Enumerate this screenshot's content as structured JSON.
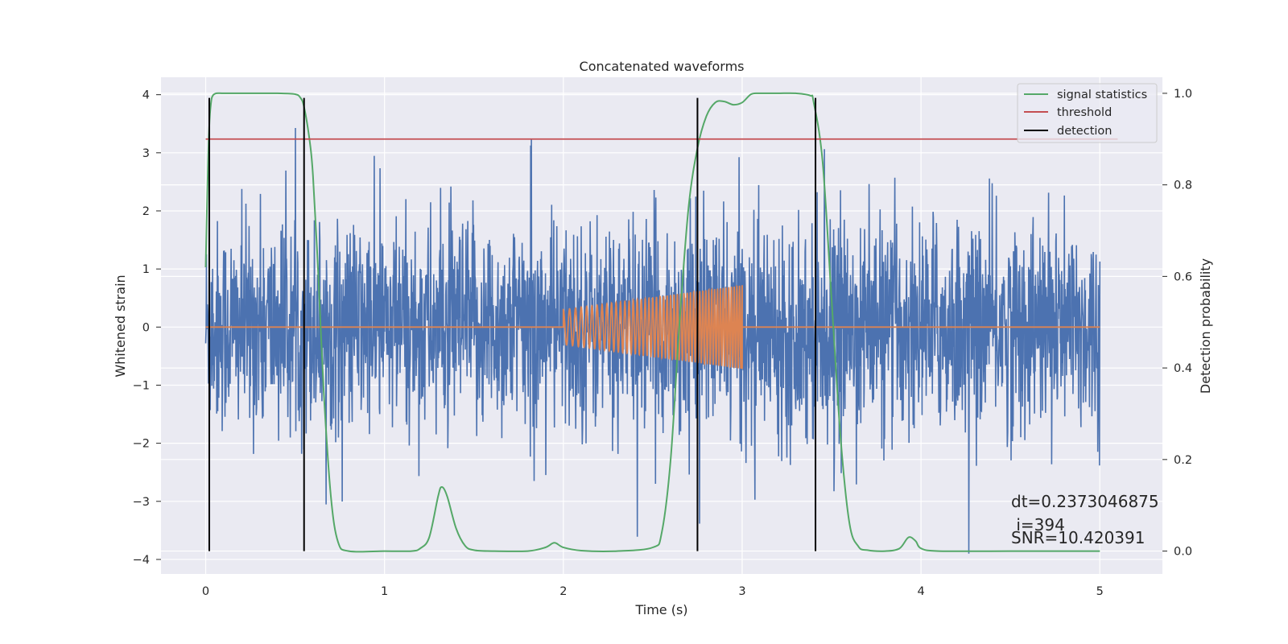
{
  "chart_data": {
    "type": "line",
    "title": "Concatenated waveforms",
    "xlabel": "Time (s)",
    "ylabel_left": "Whitened strain",
    "ylabel_right": "Detection probability",
    "xlim": [
      -0.25,
      5.35
    ],
    "ylim_left": [
      -4.25,
      4.3
    ],
    "ylim_right": [
      -0.05,
      1.035
    ],
    "x_ticks": [
      0,
      1,
      2,
      3,
      4,
      5
    ],
    "y_ticks_left": [
      -4,
      -3,
      -2,
      -1,
      0,
      1,
      2,
      3,
      4
    ],
    "y_ticks_right": [
      0.0,
      0.2,
      0.4,
      0.6,
      0.8,
      1.0
    ],
    "y_tick_labels_left": [
      "−4",
      "−3",
      "−2",
      "−1",
      "0",
      "1",
      "2",
      "3",
      "4"
    ],
    "y_tick_labels_right": [
      "0.0",
      "0.2",
      "0.4",
      "0.6",
      "0.8",
      "1.0"
    ],
    "grid": true,
    "background": "#eaeaf2",
    "legend_position": "top-right",
    "series": [
      {
        "name": "",
        "axis": "left",
        "color": "#4c72b0",
        "kind": "noise",
        "x_range": [
          0,
          5
        ],
        "amplitude_typical": 0.9,
        "amplitude_peak": 3.9
      },
      {
        "name": "",
        "axis": "left",
        "color": "#dd8452",
        "kind": "chirp",
        "x_range": [
          2.0,
          3.0
        ],
        "amplitude_start": 0.3,
        "amplitude_end": 0.72
      },
      {
        "name": "signal statistics",
        "axis": "right",
        "color": "#55a868",
        "x": [
          0,
          0.01,
          0.02,
          0.03,
          0.04,
          0.06,
          0.1,
          0.2,
          0.3,
          0.4,
          0.5,
          0.53,
          0.55,
          0.58,
          0.6,
          0.63,
          0.66,
          0.7,
          0.74,
          0.8,
          1.0,
          1.15,
          1.2,
          1.25,
          1.3,
          1.32,
          1.35,
          1.4,
          1.45,
          1.5,
          1.6,
          1.8,
          1.9,
          1.95,
          2.0,
          2.1,
          2.3,
          2.5,
          2.55,
          2.6,
          2.65,
          2.7,
          2.75,
          2.8,
          2.85,
          2.9,
          2.95,
          3.0,
          3.05,
          3.1,
          3.2,
          3.3,
          3.38,
          3.4,
          3.45,
          3.5,
          3.55,
          3.6,
          3.65,
          3.7,
          3.8,
          3.88,
          3.93,
          3.97,
          4.0,
          4.1,
          4.5,
          5.0
        ],
        "y": [
          0.62,
          0.8,
          0.93,
          0.98,
          0.995,
          1.0,
          1.0,
          1.0,
          1.0,
          1.0,
          0.998,
          0.99,
          0.97,
          0.9,
          0.82,
          0.6,
          0.35,
          0.12,
          0.02,
          0.0,
          0.0,
          0.0,
          0.006,
          0.03,
          0.12,
          0.14,
          0.12,
          0.05,
          0.012,
          0.002,
          0.0,
          0.0,
          0.008,
          0.018,
          0.008,
          0.001,
          0.0,
          0.008,
          0.04,
          0.2,
          0.5,
          0.75,
          0.88,
          0.95,
          0.98,
          0.982,
          0.975,
          0.98,
          0.998,
          1.0,
          1.0,
          1.0,
          0.995,
          0.98,
          0.85,
          0.55,
          0.25,
          0.06,
          0.01,
          0.002,
          0.0,
          0.006,
          0.03,
          0.022,
          0.006,
          0.0,
          0.0,
          0.0
        ]
      },
      {
        "name": "threshold",
        "axis": "right",
        "color": "#c44e52",
        "x": [
          0,
          5.1
        ],
        "y": [
          0.9,
          0.9
        ]
      },
      {
        "name": "detection",
        "axis": "right",
        "color": "#000000",
        "kind": "vlines",
        "x": [
          0.02,
          0.55,
          2.75,
          3.41
        ],
        "y_range": [
          0.0,
          0.99
        ]
      }
    ],
    "annotations": [
      "dt=0.2373046875",
      " i=394",
      "SNR=10.420391"
    ]
  }
}
